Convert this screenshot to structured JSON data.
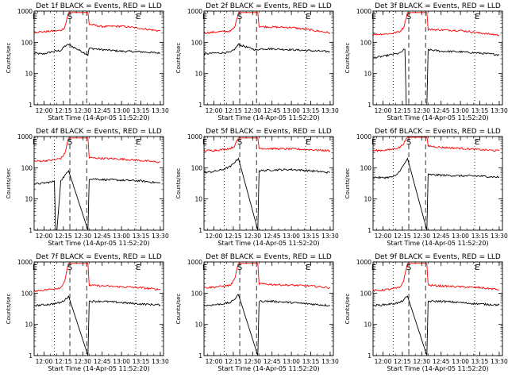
{
  "figure": {
    "panel_title_template": "Det {det} BLACK = Events, RED = LLD",
    "colors": {
      "events": "#000000",
      "lld": "#ff0000",
      "axes": "#000000",
      "background": "#ffffff"
    }
  },
  "chart_data": [
    {
      "type": "line",
      "det": "1f",
      "title": "Det 1f BLACK = Events, RED = LLD",
      "xlabel": "Start Time (14-Apr-05 11:52:20)",
      "ylabel": "Counts/sec",
      "yscale": "log",
      "ylim": [
        1,
        1000
      ],
      "xlim": [
        "11:52",
        "13:32"
      ],
      "xtick_labels": [
        "12:00",
        "12:15",
        "12:30",
        "12:45",
        "13:00",
        "13:15",
        "13:30"
      ],
      "ytick_labels": [
        "1",
        "10",
        "100",
        "1000"
      ],
      "markers": [
        "E",
        "S",
        "E"
      ],
      "series": [
        {
          "name": "Events",
          "color": "#000000",
          "x": [
            "11:52",
            "11:59",
            "12:06",
            "12:13",
            "12:16",
            "12:19",
            "12:34",
            "12:35",
            "12:45",
            "13:00",
            "13:15",
            "13:30"
          ],
          "y": [
            45,
            42,
            50,
            55,
            75,
            85,
            40,
            65,
            58,
            52,
            50,
            45
          ]
        },
        {
          "name": "LLD",
          "color": "#ff0000",
          "x": [
            "11:52",
            "11:59",
            "12:06",
            "12:13",
            "12:16",
            "12:19",
            "12:34",
            "12:35",
            "12:45",
            "13:00",
            "13:15",
            "13:30"
          ],
          "y": [
            220,
            215,
            230,
            240,
            300,
            900,
            900,
            380,
            320,
            330,
            280,
            230
          ]
        }
      ]
    },
    {
      "type": "line",
      "det": "2f",
      "title": "Det 2f BLACK = Events, RED = LLD",
      "xlabel": "Start Time (14-Apr-05 11:52:20)",
      "ylabel": "Counts/sec",
      "yscale": "log",
      "ylim": [
        1,
        1000
      ],
      "xlim": [
        "11:52",
        "13:32"
      ],
      "xtick_labels": [
        "12:00",
        "12:15",
        "12:30",
        "12:45",
        "13:00",
        "13:15",
        "13:30"
      ],
      "ytick_labels": [
        "1",
        "10",
        "100",
        "1000"
      ],
      "markers": [
        "E",
        "S",
        "E"
      ],
      "series": [
        {
          "name": "Events",
          "color": "#000000",
          "x": [
            "11:52",
            "11:59",
            "12:06",
            "12:13",
            "12:16",
            "12:19",
            "12:34",
            "12:35",
            "12:45",
            "13:00",
            "13:15",
            "13:30"
          ],
          "y": [
            42,
            45,
            46,
            48,
            60,
            85,
            55,
            62,
            62,
            58,
            54,
            50
          ]
        },
        {
          "name": "LLD",
          "color": "#ff0000",
          "x": [
            "11:52",
            "11:59",
            "12:06",
            "12:13",
            "12:16",
            "12:19",
            "12:34",
            "12:35",
            "12:45",
            "13:00",
            "13:15",
            "13:30"
          ],
          "y": [
            200,
            210,
            220,
            230,
            300,
            900,
            900,
            320,
            310,
            300,
            250,
            200
          ]
        }
      ]
    },
    {
      "type": "line",
      "det": "3f",
      "title": "Det 3f BLACK = Events, RED = LLD",
      "xlabel": "Start Time (14-Apr-05 11:52:20)",
      "ylabel": "Counts/sec",
      "yscale": "log",
      "ylim": [
        1,
        1000
      ],
      "xlim": [
        "11:52",
        "13:32"
      ],
      "xtick_labels": [
        "12:00",
        "12:15",
        "12:30",
        "12:45",
        "13:00",
        "13:15",
        "13:30"
      ],
      "ytick_labels": [
        "1",
        "10",
        "100",
        "1000"
      ],
      "markers": [
        "E",
        "S",
        "E"
      ],
      "series": [
        {
          "name": "Events",
          "color": "#000000",
          "x": [
            "11:52",
            "11:59",
            "12:06",
            "12:13",
            "12:17",
            "12:18",
            "12:19",
            "12:34",
            "12:35",
            "12:45",
            "13:00",
            "13:15",
            "13:30"
          ],
          "y": [
            32,
            35,
            40,
            45,
            60,
            1,
            1,
            1,
            58,
            52,
            50,
            45,
            40
          ]
        },
        {
          "name": "LLD",
          "color": "#ff0000",
          "x": [
            "11:52",
            "11:59",
            "12:06",
            "12:13",
            "12:16",
            "12:19",
            "12:34",
            "12:35",
            "12:45",
            "13:00",
            "13:15",
            "13:30"
          ],
          "y": [
            180,
            185,
            190,
            220,
            300,
            900,
            900,
            260,
            250,
            240,
            200,
            170
          ]
        }
      ]
    },
    {
      "type": "line",
      "det": "4f",
      "title": "Det 4f BLACK = Events, RED = LLD",
      "xlabel": "Start Time (14-Apr-05 11:52:20)",
      "ylabel": "Counts/sec",
      "yscale": "log",
      "ylim": [
        1,
        1000
      ],
      "xlim": [
        "11:52",
        "13:32"
      ],
      "xtick_labels": [
        "12:00",
        "12:15",
        "12:30",
        "12:45",
        "13:00",
        "13:15",
        "13:30"
      ],
      "ytick_labels": [
        "1",
        "10",
        "100",
        "1000"
      ],
      "markers": [
        "E",
        "S",
        "E"
      ],
      "series": [
        {
          "name": "Events",
          "color": "#000000",
          "x": [
            "11:52",
            "11:59",
            "12:06",
            "12:08",
            "12:09",
            "12:10",
            "12:13",
            "12:16",
            "12:19",
            "12:34",
            "12:35",
            "12:45",
            "13:00",
            "13:15",
            "13:30"
          ],
          "y": [
            30,
            32,
            35,
            38,
            1,
            1,
            40,
            55,
            80,
            1,
            45,
            42,
            40,
            38,
            32
          ]
        },
        {
          "name": "LLD",
          "color": "#ff0000",
          "x": [
            "11:52",
            "11:59",
            "12:06",
            "12:13",
            "12:16",
            "12:19",
            "12:34",
            "12:35",
            "12:45",
            "13:00",
            "13:15",
            "13:30"
          ],
          "y": [
            160,
            165,
            175,
            200,
            280,
            900,
            900,
            210,
            200,
            190,
            170,
            150
          ]
        }
      ]
    },
    {
      "type": "line",
      "det": "5f",
      "title": "Det 5f BLACK = Events, RED = LLD",
      "xlabel": "Start Time (14-Apr-05 11:52:20)",
      "ylabel": "Counts/sec",
      "yscale": "log",
      "ylim": [
        1,
        1000
      ],
      "xlim": [
        "11:52",
        "13:32"
      ],
      "xtick_labels": [
        "12:00",
        "12:15",
        "12:30",
        "12:45",
        "13:00",
        "13:15",
        "13:30"
      ],
      "ytick_labels": [
        "1",
        "10",
        "100",
        "1000"
      ],
      "markers": [
        "E",
        "S",
        "E"
      ],
      "series": [
        {
          "name": "Events",
          "color": "#000000",
          "x": [
            "11:52",
            "11:59",
            "12:06",
            "12:13",
            "12:16",
            "12:19",
            "12:34",
            "12:35",
            "12:45",
            "13:00",
            "13:15",
            "13:30"
          ],
          "y": [
            70,
            75,
            85,
            110,
            150,
            200,
            1,
            80,
            85,
            88,
            80,
            70
          ]
        },
        {
          "name": "LLD",
          "color": "#ff0000",
          "x": [
            "11:52",
            "11:59",
            "12:06",
            "12:13",
            "12:16",
            "12:19",
            "12:34",
            "12:35",
            "12:45",
            "13:00",
            "13:15",
            "13:30"
          ],
          "y": [
            350,
            360,
            380,
            420,
            500,
            900,
            900,
            420,
            410,
            400,
            380,
            350
          ]
        }
      ]
    },
    {
      "type": "line",
      "det": "6f",
      "title": "Det 6f BLACK = Events, RED = LLD",
      "xlabel": "Start Time (14-Apr-05 11:52:20)",
      "ylabel": "Counts/sec",
      "yscale": "log",
      "ylim": [
        1,
        1000
      ],
      "xlim": [
        "11:52",
        "13:32"
      ],
      "xtick_labels": [
        "12:00",
        "12:15",
        "12:30",
        "12:45",
        "13:00",
        "13:15",
        "13:30"
      ],
      "ytick_labels": [
        "1",
        "10",
        "100",
        "1000"
      ],
      "markers": [
        "E",
        "S",
        "E"
      ],
      "series": [
        {
          "name": "Events",
          "color": "#000000",
          "x": [
            "11:52",
            "11:59",
            "12:06",
            "12:10",
            "12:13",
            "12:16",
            "12:19",
            "12:34",
            "12:35",
            "12:45",
            "13:00",
            "13:15",
            "13:30"
          ],
          "y": [
            50,
            48,
            50,
            55,
            80,
            120,
            200,
            1,
            60,
            58,
            55,
            54,
            50
          ]
        },
        {
          "name": "LLD",
          "color": "#ff0000",
          "x": [
            "11:52",
            "11:59",
            "12:06",
            "12:13",
            "12:16",
            "12:19",
            "12:34",
            "12:35",
            "12:45",
            "13:00",
            "13:15",
            "13:30"
          ],
          "y": [
            350,
            360,
            380,
            450,
            600,
            950,
            950,
            500,
            450,
            420,
            380,
            350
          ]
        }
      ]
    },
    {
      "type": "line",
      "det": "7f",
      "title": "Det 7f BLACK = Events, RED = LLD",
      "xlabel": "Start Time (14-Apr-05 11:52:20)",
      "ylabel": "Counts/sec",
      "yscale": "log",
      "ylim": [
        1,
        1000
      ],
      "xlim": [
        "11:52",
        "13:32"
      ],
      "xtick_labels": [
        "12:00",
        "12:15",
        "12:30",
        "12:45",
        "13:00",
        "13:15",
        "13:30"
      ],
      "ytick_labels": [
        "1",
        "10",
        "100",
        "1000"
      ],
      "markers": [
        "E",
        "S",
        "E"
      ],
      "series": [
        {
          "name": "Events",
          "color": "#000000",
          "x": [
            "11:52",
            "11:59",
            "12:06",
            "12:13",
            "12:16",
            "12:19",
            "12:34",
            "12:35",
            "12:45",
            "13:00",
            "13:15",
            "13:30"
          ],
          "y": [
            40,
            42,
            45,
            50,
            60,
            80,
            1,
            55,
            55,
            50,
            45,
            42
          ]
        },
        {
          "name": "LLD",
          "color": "#ff0000",
          "x": [
            "11:52",
            "11:59",
            "12:06",
            "12:13",
            "12:16",
            "12:19",
            "12:34",
            "12:35",
            "12:45",
            "13:00",
            "13:15",
            "13:30"
          ],
          "y": [
            120,
            125,
            135,
            150,
            250,
            900,
            900,
            180,
            170,
            160,
            150,
            130
          ]
        }
      ]
    },
    {
      "type": "line",
      "det": "8f",
      "title": "Det 8f BLACK = Events, RED = LLD",
      "xlabel": "Start Time (14-Apr-05 11:52:20)",
      "ylabel": "Counts/sec",
      "yscale": "log",
      "ylim": [
        1,
        1000
      ],
      "xlim": [
        "11:52",
        "13:32"
      ],
      "xtick_labels": [
        "12:00",
        "12:15",
        "12:30",
        "12:45",
        "13:00",
        "13:15",
        "13:30"
      ],
      "ytick_labels": [
        "1",
        "10",
        "100",
        "1000"
      ],
      "markers": [
        "E",
        "S",
        "E"
      ],
      "series": [
        {
          "name": "Events",
          "color": "#000000",
          "x": [
            "11:52",
            "11:59",
            "12:06",
            "12:13",
            "12:16",
            "12:19",
            "12:34",
            "12:35",
            "12:45",
            "13:00",
            "13:15",
            "13:30"
          ],
          "y": [
            40,
            42,
            45,
            50,
            65,
            90,
            1,
            55,
            55,
            50,
            45,
            40
          ]
        },
        {
          "name": "LLD",
          "color": "#ff0000",
          "x": [
            "11:52",
            "11:59",
            "12:06",
            "12:13",
            "12:16",
            "12:19",
            "12:34",
            "12:35",
            "12:45",
            "13:00",
            "13:15",
            "13:30"
          ],
          "y": [
            150,
            155,
            165,
            180,
            280,
            900,
            900,
            200,
            190,
            180,
            170,
            150
          ]
        }
      ]
    },
    {
      "type": "line",
      "det": "9f",
      "title": "Det 9f BLACK = Events, RED = LLD",
      "xlabel": "Start Time (14-Apr-05 11:52:20)",
      "ylabel": "Counts/sec",
      "yscale": "log",
      "ylim": [
        1,
        1000
      ],
      "xlim": [
        "11:52",
        "13:32"
      ],
      "xtick_labels": [
        "12:00",
        "12:15",
        "12:30",
        "12:45",
        "13:00",
        "13:15",
        "13:30"
      ],
      "ytick_labels": [
        "1",
        "10",
        "100",
        "1000"
      ],
      "markers": [
        "E",
        "S",
        "E"
      ],
      "series": [
        {
          "name": "Events",
          "color": "#000000",
          "x": [
            "11:52",
            "11:59",
            "12:06",
            "12:13",
            "12:16",
            "12:19",
            "12:34",
            "12:35",
            "12:45",
            "13:00",
            "13:15",
            "13:30"
          ],
          "y": [
            40,
            42,
            45,
            50,
            60,
            80,
            1,
            55,
            55,
            50,
            45,
            42
          ]
        },
        {
          "name": "LLD",
          "color": "#ff0000",
          "x": [
            "11:52",
            "11:59",
            "12:06",
            "12:13",
            "12:16",
            "12:19",
            "12:34",
            "12:35",
            "12:45",
            "13:00",
            "13:15",
            "13:30"
          ],
          "y": [
            120,
            125,
            135,
            150,
            250,
            900,
            900,
            180,
            170,
            160,
            150,
            130
          ]
        }
      ]
    }
  ]
}
